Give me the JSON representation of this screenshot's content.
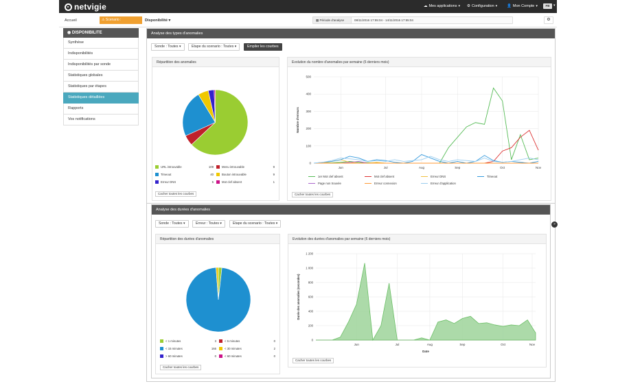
{
  "topbar": {
    "logo": "netvigie",
    "menu_apps": "Mes applications",
    "menu_config": "Configuration",
    "menu_account": "Mon Compte",
    "user_badge": "FB"
  },
  "subbar": {
    "home": "Accueil",
    "scenario": "Scenario :",
    "section": "Disponibilité",
    "period_label": "Période d'analyse",
    "period_value": "08/11/2016 17:55:04 - 14/11/2016 17:55:04"
  },
  "sidebar": {
    "title": "DISPONIBILITE",
    "items": [
      {
        "label": "Synthèse"
      },
      {
        "label": "Indisponibilités"
      },
      {
        "label": "Indisponibilités par sonde"
      },
      {
        "label": "Statistiques globales"
      },
      {
        "label": "Statistiques par étapes"
      },
      {
        "label": "Statistiques détaillées"
      },
      {
        "label": "Rapports"
      },
      {
        "label": "Vos notifications"
      }
    ]
  },
  "types_panel": {
    "title": "Analyse des types d'anomalies",
    "filter_sonde": "Sonde : Toutes",
    "filter_etape": "Etape du scenario : Toutes",
    "stack_button": "Empiler les courbes",
    "pie_title": "Répartition des anomalies",
    "pie_legend": [
      {
        "label": "URL introuvable",
        "value": "109",
        "color": "#9ACD32"
      },
      {
        "label": "Menu introuvable",
        "value": "9",
        "color": "#C0202A"
      },
      {
        "label": "Timeout",
        "value": "40",
        "color": "#1E90D0"
      },
      {
        "label": "Bouton introuvable",
        "value": "9",
        "color": "#F0C800"
      },
      {
        "label": "Erreur DNS",
        "value": "5",
        "color": "#3322CC"
      },
      {
        "label": "Mot clef absent",
        "value": "1",
        "color": "#CC1188"
      }
    ],
    "hide_curves": "Cacher toutes les courbes",
    "line_title": "Evolution du nombre d'anomalies par semaine (6 derniers mois)",
    "line_legend": [
      {
        "label": "1er Mot clef absent",
        "color": "#55BB55"
      },
      {
        "label": "Mot clef absent",
        "color": "#DD3333"
      },
      {
        "label": "Erreur DNS",
        "color": "#F0C040"
      },
      {
        "label": "Timeout",
        "color": "#3399DD"
      },
      {
        "label": "Page non trouvée",
        "color": "#AA66CC"
      },
      {
        "label": "Erreur connexion",
        "color": "#FF9933"
      },
      {
        "label": "Erreur d'application",
        "color": "#99CCEE"
      }
    ],
    "hide_curves_2": "Cacher toutes les courbes"
  },
  "durations_panel": {
    "title": "Analyse des durées d'anomalies",
    "filter_sonde": "Sonde : Toutes",
    "filter_erreur": "Erreur : Toutes",
    "filter_etape": "Etape du scenario : Toutes",
    "pie_title": "Répartition des durées d'anomalies",
    "pie_legend": [
      {
        "label": "< 1 minutes",
        "value": "3",
        "color": "#9ACD32"
      },
      {
        "label": "< 5 minutes",
        "value": "0",
        "color": "#C0202A"
      },
      {
        "label": "< 15 minutes",
        "value": "166",
        "color": "#1E90D0"
      },
      {
        "label": "< 30 minutes",
        "value": "2",
        "color": "#F0C800"
      },
      {
        "label": "> 60 minutes",
        "value": "0",
        "color": "#3322CC"
      },
      {
        "label": "< 60 minutes",
        "value": "0",
        "color": "#CC1188"
      }
    ],
    "hide_curves": "Cacher toutes les courbes",
    "area_title": "Evolution des durées d'anomalies par semaine (6 derniers mois)",
    "hide_curves_2": "Cacher toutes les courbes"
  },
  "chart_data": [
    {
      "type": "pie",
      "categories": [
        "URL introuvable",
        "Menu introuvable",
        "Timeout",
        "Bouton introuvable",
        "Erreur DNS",
        "Mot clef absent"
      ],
      "values": [
        109,
        9,
        40,
        9,
        5,
        1
      ]
    },
    {
      "type": "line",
      "ylabel": "Nombre d'erreurs",
      "ylim": [
        0,
        500
      ],
      "yticks": [
        0,
        100,
        200,
        300,
        400,
        500
      ],
      "xticks": [
        "Jun",
        "Jul",
        "Aug",
        "Sep",
        "Oct",
        "Nov"
      ],
      "x": [
        0,
        1,
        2,
        3,
        4,
        5,
        6,
        7,
        8,
        9,
        10,
        11,
        12,
        13,
        14,
        15,
        16,
        17,
        18,
        19,
        20,
        21,
        22,
        23,
        24,
        25
      ],
      "series": [
        {
          "name": "1er Mot clef absent",
          "values": [
            0,
            0,
            2,
            5,
            10,
            5,
            3,
            2,
            0,
            0,
            0,
            0,
            0,
            0,
            0,
            90,
            150,
            210,
            235,
            225,
            435,
            360,
            20,
            165,
            20,
            30
          ]
        },
        {
          "name": "Mot clef absent",
          "values": [
            0,
            0,
            0,
            0,
            0,
            0,
            0,
            0,
            0,
            0,
            0,
            0,
            0,
            0,
            0,
            0,
            0,
            0,
            0,
            0,
            10,
            70,
            90,
            150,
            190,
            75
          ]
        },
        {
          "name": "Erreur DNS",
          "values": [
            0,
            0,
            10,
            20,
            5,
            0,
            0,
            5,
            0,
            0,
            0,
            0,
            0,
            0,
            0,
            0,
            0,
            0,
            0,
            0,
            0,
            0,
            0,
            0,
            0,
            0
          ]
        },
        {
          "name": "Timeout",
          "values": [
            0,
            5,
            10,
            20,
            40,
            30,
            10,
            20,
            15,
            5,
            0,
            10,
            50,
            30,
            10,
            0,
            10,
            0,
            10,
            45,
            15,
            5,
            10,
            5,
            0,
            10
          ]
        },
        {
          "name": "Page non trouvée",
          "values": [
            0,
            0,
            0,
            0,
            5,
            10,
            0,
            0,
            0,
            0,
            0,
            0,
            0,
            0,
            0,
            0,
            0,
            0,
            0,
            0,
            0,
            0,
            0,
            0,
            0,
            0
          ]
        },
        {
          "name": "Erreur connexion",
          "values": [
            0,
            0,
            0,
            0,
            0,
            0,
            0,
            0,
            0,
            0,
            0,
            0,
            0,
            0,
            0,
            0,
            0,
            0,
            0,
            0,
            0,
            0,
            0,
            0,
            0,
            0
          ]
        },
        {
          "name": "Erreur d'application",
          "values": [
            0,
            5,
            15,
            30,
            25,
            20,
            10,
            15,
            10,
            20,
            10,
            15,
            20,
            40,
            20,
            10,
            20,
            15,
            10,
            30,
            10,
            5,
            10,
            20,
            30,
            20
          ]
        }
      ]
    },
    {
      "type": "pie",
      "categories": [
        "< 1 minutes",
        "< 5 minutes",
        "< 15 minutes",
        "< 30 minutes",
        "> 60 minutes",
        "< 60 minutes"
      ],
      "values": [
        3,
        0,
        166,
        2,
        0,
        0
      ]
    },
    {
      "type": "area",
      "xlabel": "Date",
      "ylabel": "Durée des anomalies (secondes)",
      "ylim": [
        0,
        1200
      ],
      "yticks": [
        "0",
        "200",
        "400",
        "600",
        "800",
        "1 000",
        "1 200"
      ],
      "xticks": [
        "Jun",
        "Jul",
        "Aug",
        "Sep",
        "Oct",
        "Nov"
      ],
      "x": [
        0,
        1,
        2,
        3,
        4,
        5,
        6,
        7,
        8,
        9,
        10,
        11,
        12,
        13,
        14,
        15,
        16,
        17,
        18,
        19,
        20,
        21,
        22,
        23,
        24,
        25,
        26,
        27
      ],
      "values": [
        0,
        0,
        0,
        40,
        250,
        500,
        1070,
        0,
        200,
        790,
        0,
        0,
        0,
        30,
        0,
        250,
        280,
        230,
        300,
        330,
        230,
        240,
        210,
        190,
        210,
        200,
        280,
        100
      ]
    }
  ]
}
